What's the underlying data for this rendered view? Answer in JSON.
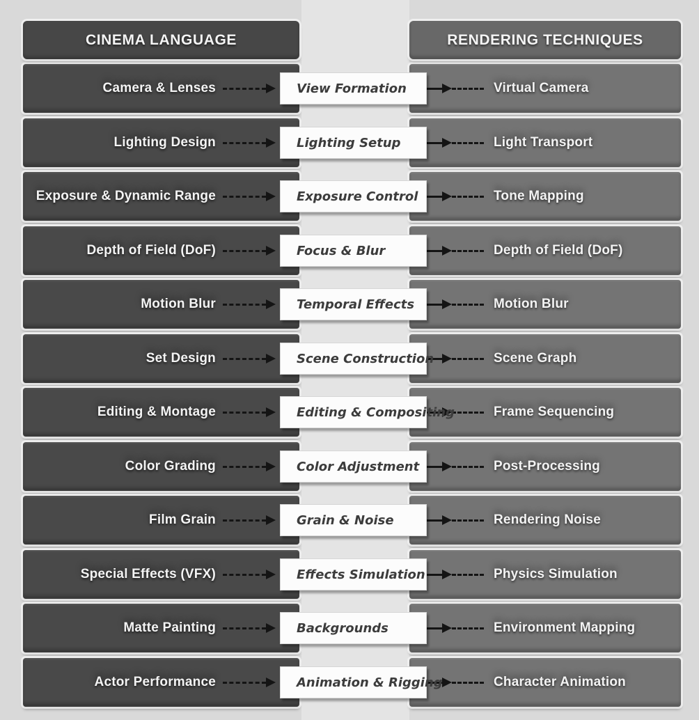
{
  "diagram": {
    "left_header": "CINEMA LANGUAGE",
    "right_header": "RENDERING TECHNIQUES"
  },
  "connector": {
    "type": "dashed-arrow-right",
    "glyph": "▶"
  },
  "colors": {
    "page_background": "#d9d9d9",
    "middle_band": "#e4e4e4",
    "left_header_box": "#474747",
    "right_header_box": "#686868",
    "cinema_box": "#494949",
    "rendering_box": "#747474",
    "bridge_box": "#fcfcfc",
    "box_text": "#f3f3f3",
    "bridge_text": "#3c3c3c",
    "arrow": "#141414"
  },
  "rows": [
    {
      "cinema": "Camera & Lenses",
      "bridge": "View Formation",
      "rendering": "Virtual Camera"
    },
    {
      "cinema": "Lighting Design",
      "bridge": "Lighting Setup",
      "rendering": "Light Transport"
    },
    {
      "cinema": "Exposure & Dynamic Range",
      "bridge": "Exposure Control",
      "rendering": "Tone Mapping"
    },
    {
      "cinema": "Depth of Field (DoF)",
      "bridge": "Focus & Blur",
      "rendering": "Depth of Field (DoF)"
    },
    {
      "cinema": "Motion Blur",
      "bridge": "Temporal Effects",
      "rendering": "Motion Blur"
    },
    {
      "cinema": "Set Design",
      "bridge": "Scene Construction",
      "rendering": "Scene Graph"
    },
    {
      "cinema": "Editing & Montage",
      "bridge": "Editing & Compositing",
      "rendering": "Frame Sequencing"
    },
    {
      "cinema": "Color Grading",
      "bridge": "Color Adjustment",
      "rendering": "Post-Processing"
    },
    {
      "cinema": "Film Grain",
      "bridge": "Grain & Noise",
      "rendering": "Rendering Noise"
    },
    {
      "cinema": "Special Effects (VFX)",
      "bridge": "Effects Simulation",
      "rendering": "Physics Simulation"
    },
    {
      "cinema": "Matte Painting",
      "bridge": "Backgrounds",
      "rendering": "Environment Mapping"
    },
    {
      "cinema": "Actor Performance",
      "bridge": "Animation & Rigging",
      "rendering": "Character Animation"
    }
  ],
  "layout_numbers": {
    "row_count": "12"
  }
}
